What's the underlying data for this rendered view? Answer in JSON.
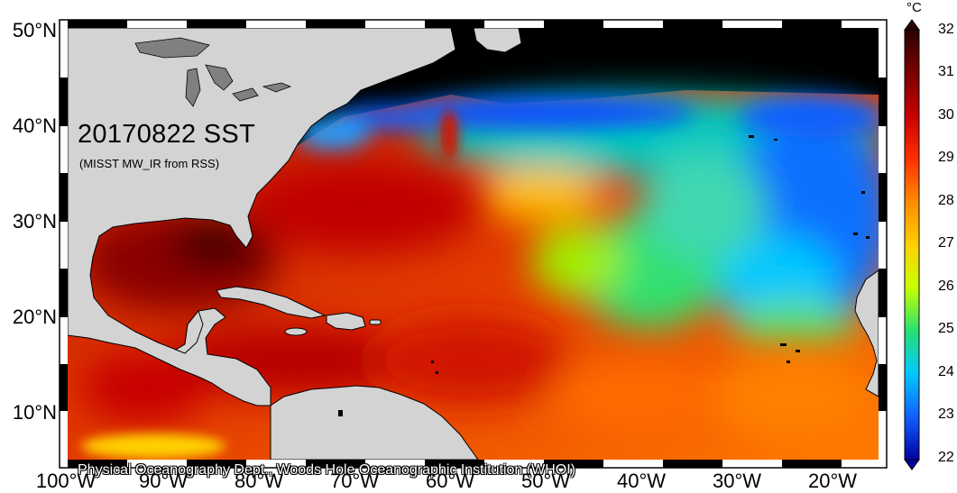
{
  "map": {
    "title": "20170822 SST",
    "subtitle": "(MISST MW_IR from RSS)",
    "credit": "Physical Oceanography Dept., Woods Hole Oceanographic Institution (WHOI)",
    "region": "North Atlantic",
    "lon_range": [
      -100,
      -15
    ],
    "lat_range": [
      5,
      51
    ],
    "land_color": "#d3d3d3",
    "missing_color": "#000000"
  },
  "axes": {
    "lat_labels": [
      "50°N",
      "40°N",
      "30°N",
      "20°N",
      "10°N"
    ],
    "lon_labels": [
      "100°W",
      "90°W",
      "80°W",
      "70°W",
      "60°W",
      "50°W",
      "40°W",
      "30°W",
      "20°W"
    ]
  },
  "colorbar": {
    "unit": "°C",
    "min": 22,
    "max": 32,
    "tick_labels": [
      "32",
      "31",
      "30",
      "29",
      "28",
      "27",
      "26",
      "25",
      "24",
      "23",
      "22"
    ],
    "colors": [
      "#3a0000",
      "#7a0000",
      "#c80000",
      "#ff3000",
      "#ff8a00",
      "#ffd000",
      "#c8ff00",
      "#28e070",
      "#00c8ff",
      "#1060ff",
      "#0000a0"
    ]
  }
}
